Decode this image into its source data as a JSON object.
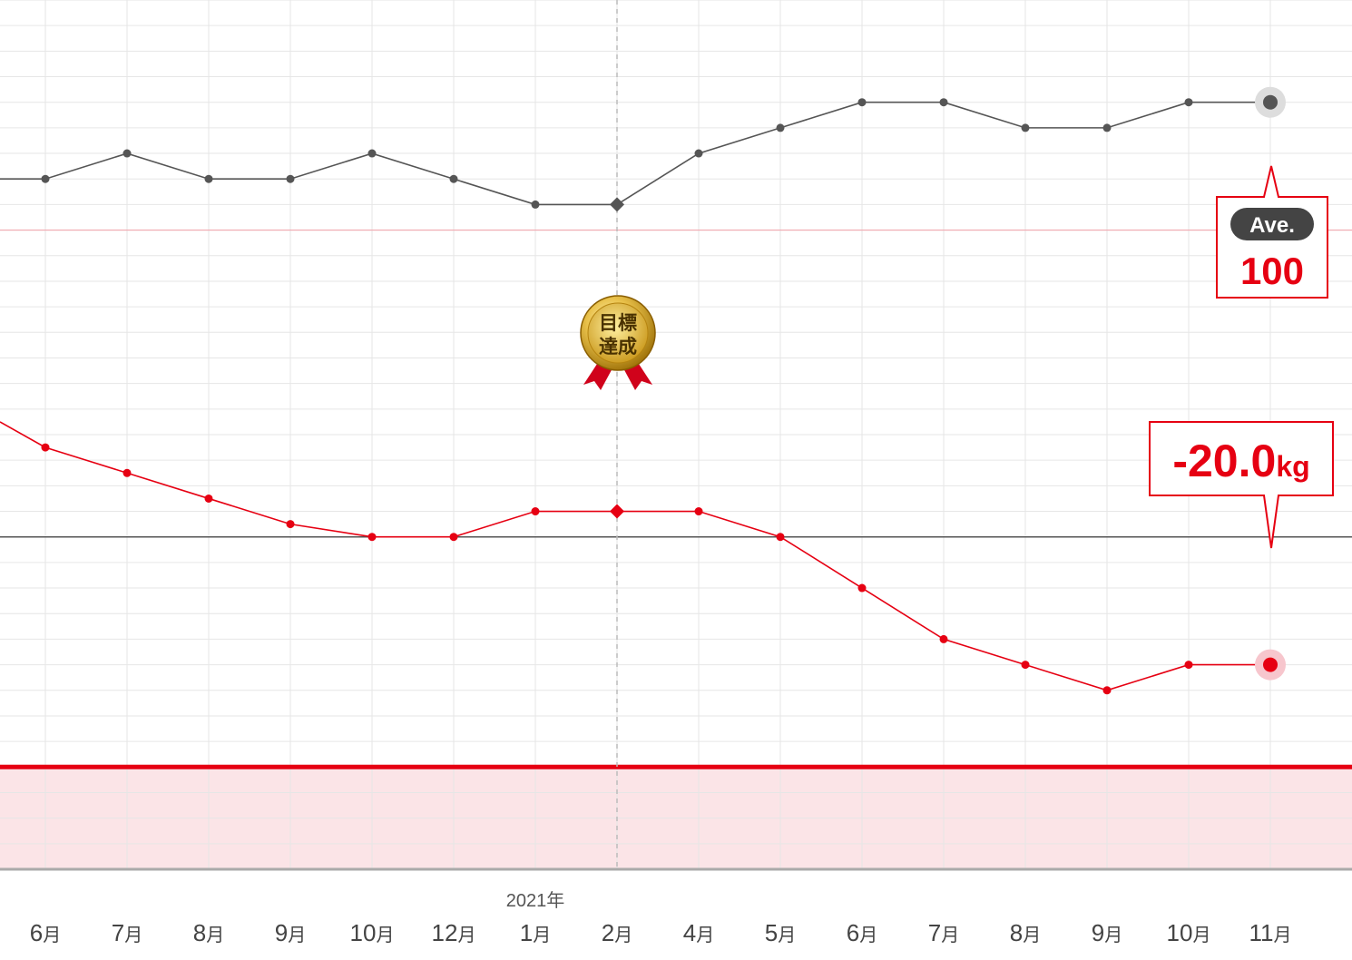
{
  "chart_data": {
    "type": "line",
    "months": [
      "6月",
      "7月",
      "8月",
      "9月",
      "10月",
      "12月",
      "1月",
      "2月",
      "4月",
      "5月",
      "6月",
      "7月",
      "8月",
      "9月",
      "10月",
      "11月"
    ],
    "year_marker": {
      "label": "2021年",
      "month_index": 6
    },
    "series": [
      {
        "values": [
          7,
          8,
          7,
          7,
          8,
          7,
          6,
          6,
          8,
          9,
          10,
          10,
          9,
          9,
          10,
          10
        ],
        "color": "#555555",
        "marker_shape_at_index_7": "diamond"
      },
      {
        "values": [
          -3.5,
          -4.5,
          -5.5,
          -6.5,
          -7,
          -7,
          -6,
          -6,
          -6,
          -7,
          -9,
          -11,
          -12,
          -13,
          -12,
          -12
        ],
        "color": "#e60012",
        "marker_shape_at_index_7": "diamond"
      }
    ],
    "ylim": [
      -20,
      14
    ],
    "target_line_value": 5,
    "baseline_value": -7,
    "red_band_top_value": -16,
    "goal_achieved_index": 7,
    "grid": true
  },
  "callouts": {
    "average": {
      "badge": "Ave.",
      "value": "100"
    },
    "difference": {
      "number": "-20.0",
      "unit": "kg"
    }
  },
  "medal": {
    "line1": "目標",
    "line2": "達成",
    "color": "#d4a017"
  },
  "colors": {
    "accent": "#e60012",
    "band_fill": "#fbe4e7",
    "gray_line": "#555555",
    "grid": "#e6e6e6"
  }
}
